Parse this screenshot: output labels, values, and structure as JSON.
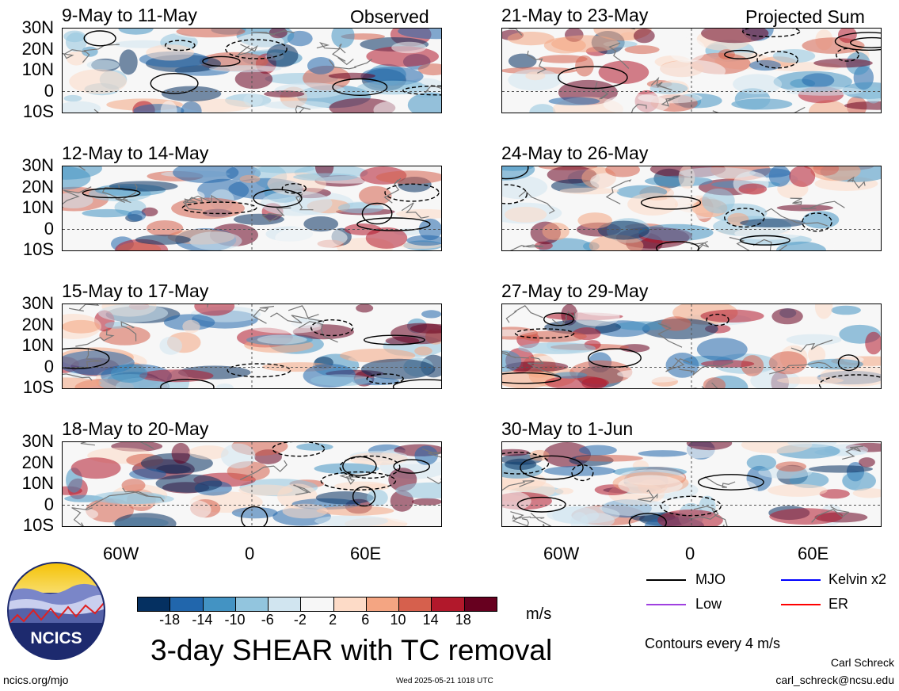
{
  "panels_left": [
    {
      "title": "9-May to 11-May",
      "tag": "Observed"
    },
    {
      "title": "12-May to 14-May",
      "tag": ""
    },
    {
      "title": "15-May to 17-May",
      "tag": ""
    },
    {
      "title": "18-May to 20-May",
      "tag": ""
    }
  ],
  "panels_right": [
    {
      "title": "21-May to 23-May",
      "tag": "Projected Sum"
    },
    {
      "title": "24-May to 26-May",
      "tag": ""
    },
    {
      "title": "27-May to 29-May",
      "tag": ""
    },
    {
      "title": "30-May to 1-Jun",
      "tag": ""
    }
  ],
  "lat_labels": [
    "30N",
    "20N",
    "10N",
    "0",
    "10S"
  ],
  "lon_labels": [
    "60W",
    "0",
    "60E"
  ],
  "colorbar": {
    "ticks": [
      "-18",
      "-14",
      "-10",
      "-6",
      "-2",
      "2",
      "6",
      "10",
      "14",
      "18"
    ],
    "colors": [
      "#053061",
      "#2166ac",
      "#4393c3",
      "#92c5de",
      "#d1e5f0",
      "#f7f7f7",
      "#fddbc7",
      "#f4a582",
      "#d6604d",
      "#b2182b",
      "#67001f"
    ],
    "units": "m/s"
  },
  "main_title": "3-day SHEAR with TC removal",
  "legend": [
    {
      "label": "MJO",
      "color": "#000000"
    },
    {
      "label": "Kelvin x2",
      "color": "#0000ff"
    },
    {
      "label": "Low",
      "color": "#a040e0"
    },
    {
      "label": "ER",
      "color": "#ff0000"
    }
  ],
  "contour_note": "Contours every 4 m/s",
  "logo_text": "NCICS",
  "footer": {
    "site": "ncics.org/mjo",
    "timestamp": "Wed 2025-05-21 1018 UTC",
    "author": "Carl Schreck",
    "email": "carl_schreck@ncsu.edu"
  }
}
